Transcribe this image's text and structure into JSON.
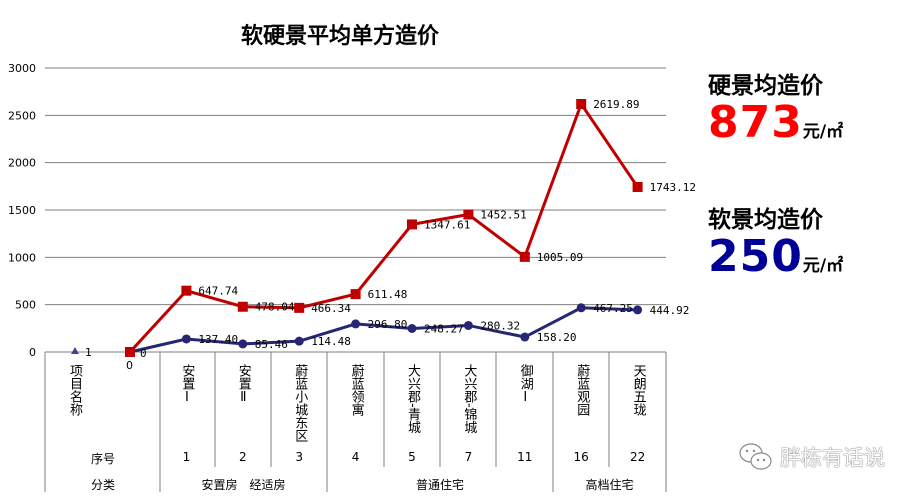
{
  "chart_data": {
    "type": "line",
    "title": "软硬景平均单方造价",
    "ylim": [
      0,
      3000
    ],
    "yticks": [
      0,
      500,
      1000,
      1500,
      2000,
      2500,
      3000
    ],
    "grid": true,
    "header_label": "项目名称",
    "seq_label": "序号",
    "cat_label": "分类",
    "start_value_label": "0",
    "triangle_marker_label": "1",
    "projects": [
      "安置Ⅰ",
      "安置Ⅱ",
      "蔚蓝小城东区",
      "蔚蓝领寓",
      "大兴郡-青城",
      "大兴郡-锦城",
      "御湖Ⅰ",
      "蔚蓝观园",
      "天朗五珑"
    ],
    "seq": [
      "1",
      "2",
      "3",
      "4",
      "5",
      "7",
      "11",
      "16",
      "22"
    ],
    "groups": [
      "安置房　经适房",
      "普通住宅",
      "高档住宅"
    ],
    "series": [
      {
        "color": "#c00000",
        "marker": "square",
        "values": [
          0,
          647.74,
          478.04,
          466.34,
          611.48,
          1347.61,
          1452.51,
          1005.09,
          2619.89,
          1743.12
        ],
        "labels": [
          "0",
          "647.74",
          "478.04",
          "466.34",
          "611.48",
          "1347.61",
          "1452.51",
          "1005.09",
          "2619.89",
          "1743.12"
        ]
      },
      {
        "color": "#262673",
        "marker": "circle",
        "values": [
          0,
          137.4,
          85.46,
          114.48,
          296.8,
          248.27,
          280.32,
          158.2,
          467.25,
          444.92
        ],
        "labels": [
          "",
          "137.40",
          "85.46",
          "114.48",
          "296.80",
          "248.27",
          "280.32",
          "158.20",
          "467.25",
          "444.92"
        ]
      }
    ]
  },
  "summary": {
    "hard_label": "硬景均造价",
    "hard_value": "873",
    "hard_color": "#ff0000",
    "soft_label": "软景均造价",
    "soft_value": "250",
    "soft_color": "#000099",
    "unit": "元/㎡"
  },
  "watermark": {
    "text": "胖栋有话说",
    "icon": "wechat-icon"
  }
}
